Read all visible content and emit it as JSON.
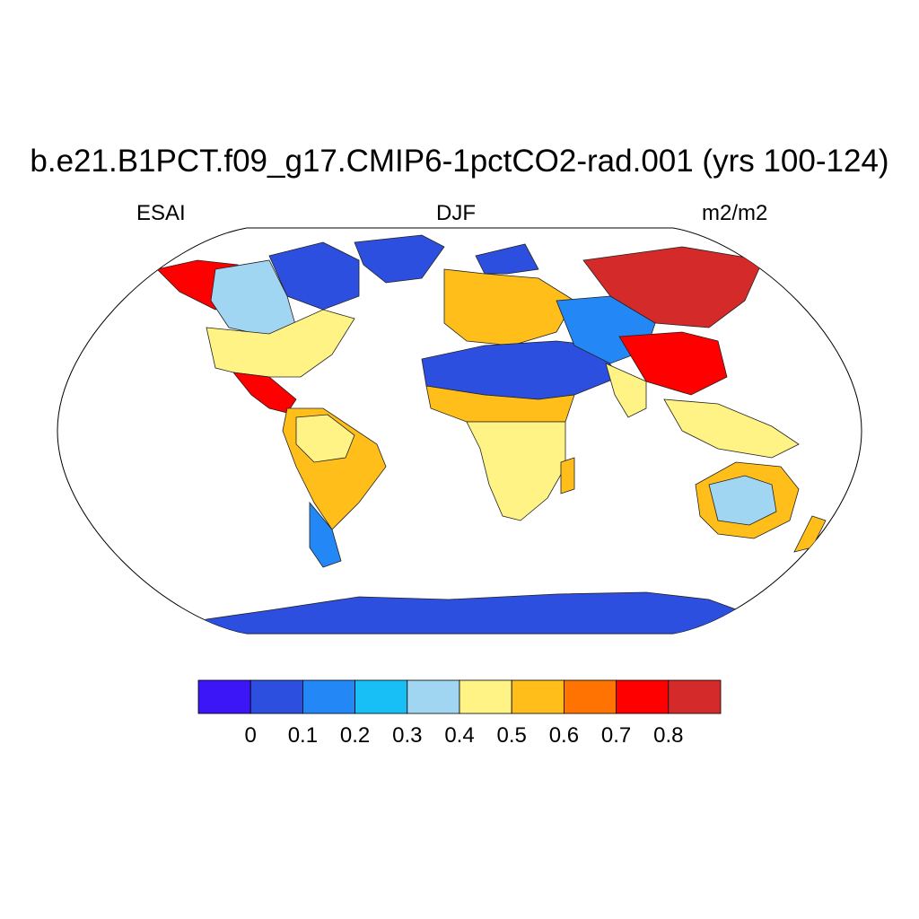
{
  "title": "b.e21.B1PCT.f09_g17.CMIP6-1pctCO2-rad.001 (yrs 100-124)",
  "left_label": "ESAI",
  "center_label": "DJF",
  "right_label": "m2/m2",
  "colorbar": {
    "colors": [
      "#3d16f7",
      "#2d4fe0",
      "#2388f5",
      "#18bff7",
      "#a0d6f2",
      "#fff385",
      "#ffbe19",
      "#ff7303",
      "#fe0000",
      "#d42a2a"
    ],
    "tick_labels": [
      "0",
      "0.1",
      "0.2",
      "0.3",
      "0.4",
      "0.5",
      "0.6",
      "0.7",
      "0.8"
    ]
  },
  "map": {
    "ocean_color": "#ffffff",
    "regions": [
      {
        "name": "greenland",
        "color": "#2d4fe0"
      },
      {
        "name": "antarctica",
        "color": "#2d4fe0"
      },
      {
        "name": "alaska",
        "color": "#fe0000"
      },
      {
        "name": "canada-west",
        "color": "#a0d6f2"
      },
      {
        "name": "canada-east",
        "color": "#2d4fe0"
      },
      {
        "name": "usa",
        "color": "#fff385"
      },
      {
        "name": "central-america",
        "color": "#fe0000"
      },
      {
        "name": "south-america",
        "color": "#ffbe19"
      },
      {
        "name": "amazon",
        "color": "#fff385"
      },
      {
        "name": "patagonia",
        "color": "#2388f5"
      },
      {
        "name": "europe",
        "color": "#ffbe19"
      },
      {
        "name": "scandinavia",
        "color": "#2d4fe0"
      },
      {
        "name": "sahara-arabia",
        "color": "#2d4fe0"
      },
      {
        "name": "sahel",
        "color": "#ffbe19"
      },
      {
        "name": "africa-south",
        "color": "#fff385"
      },
      {
        "name": "central-asia",
        "color": "#2388f5"
      },
      {
        "name": "siberia",
        "color": "#d42a2a"
      },
      {
        "name": "india",
        "color": "#fff385"
      },
      {
        "name": "china",
        "color": "#fe0000"
      },
      {
        "name": "southeast-asia",
        "color": "#fff385"
      },
      {
        "name": "australia",
        "color": "#a0d6f2"
      },
      {
        "name": "australia-rim",
        "color": "#ffbe19"
      },
      {
        "name": "madagascar",
        "color": "#ffbe19"
      },
      {
        "name": "new-zealand",
        "color": "#ffbe19"
      }
    ]
  }
}
